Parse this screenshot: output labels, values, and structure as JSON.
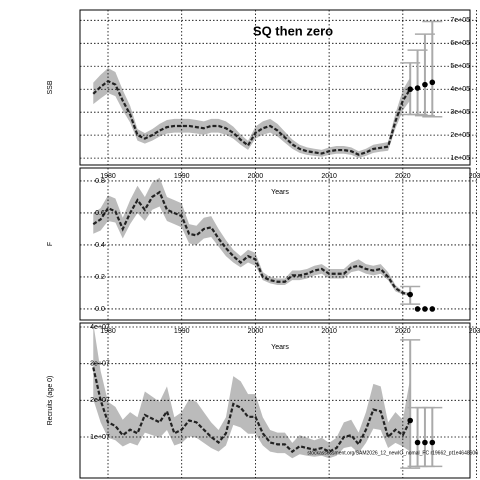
{
  "chart_data": [
    {
      "type": "line",
      "title": "SQ then zero",
      "ylabel": "SSB",
      "xlabel": "Years",
      "xlim": [
        1976.2,
        2030.2
      ],
      "xticks": [
        1980,
        1990,
        2000,
        2010,
        2020,
        2030
      ],
      "ylim": [
        70000,
        745000
      ],
      "yticks": [
        {
          "value": 100000,
          "label": "1e+05"
        },
        {
          "value": 200000,
          "label": "2e+05"
        },
        {
          "value": 300000,
          "label": "3e+05"
        },
        {
          "value": 400000,
          "label": "4e+05"
        },
        {
          "value": 500000,
          "label": "5e+05"
        },
        {
          "value": 600000,
          "label": "6e+05"
        },
        {
          "value": 700000,
          "label": "7e+05"
        }
      ],
      "ytick_side": "right",
      "grid": true,
      "color": "#222222",
      "band_color": "#bbbbbb",
      "bar_color": "#aaaaaa",
      "x": [
        1978,
        1979,
        1980,
        1981,
        1982,
        1983,
        1984,
        1985,
        1986,
        1987,
        1988,
        1989,
        1990,
        1991,
        1992,
        1993,
        1994,
        1995,
        1996,
        1997,
        1998,
        1999,
        2000,
        2001,
        2002,
        2003,
        2004,
        2005,
        2006,
        2007,
        2008,
        2009,
        2010,
        2011,
        2012,
        2013,
        2014,
        2015,
        2016,
        2017,
        2018,
        2019,
        2020,
        2021
      ],
      "values": [
        380000,
        410000,
        435000,
        420000,
        350000,
        290000,
        200000,
        185000,
        200000,
        220000,
        235000,
        240000,
        240000,
        240000,
        235000,
        230000,
        240000,
        240000,
        230000,
        210000,
        180000,
        155000,
        210000,
        230000,
        240000,
        220000,
        190000,
        160000,
        140000,
        130000,
        125000,
        120000,
        130000,
        135000,
        135000,
        130000,
        115000,
        125000,
        140000,
        145000,
        150000,
        260000,
        350000,
        400000
      ],
      "lower": [
        335000,
        360000,
        383000,
        370000,
        308000,
        255000,
        176000,
        163000,
        176000,
        194000,
        207000,
        211000,
        211000,
        211000,
        207000,
        202000,
        211000,
        211000,
        202000,
        185000,
        158000,
        136000,
        185000,
        202000,
        211000,
        194000,
        167000,
        141000,
        123000,
        114000,
        110000,
        106000,
        114000,
        119000,
        119000,
        114000,
        101000,
        110000,
        123000,
        128000,
        132000,
        229000,
        308000,
        352000
      ],
      "upper": [
        429000,
        463000,
        492000,
        475000,
        396000,
        328000,
        226000,
        209000,
        226000,
        249000,
        266000,
        271000,
        271000,
        271000,
        266000,
        260000,
        271000,
        271000,
        260000,
        237000,
        203000,
        175000,
        237000,
        260000,
        271000,
        249000,
        215000,
        181000,
        158000,
        147000,
        141000,
        136000,
        147000,
        153000,
        153000,
        147000,
        130000,
        141000,
        158000,
        164000,
        170000,
        294000,
        396000,
        452000
      ],
      "forecast": {
        "x": [
          2021,
          2022,
          2023,
          2024
        ],
        "values": [
          400000,
          405000,
          420000,
          430000
        ],
        "lower": [
          290000,
          290000,
          285000,
          280000
        ],
        "upper": [
          515000,
          570000,
          640000,
          695000
        ]
      }
    },
    {
      "type": "line",
      "ylabel": "F",
      "xlabel": "Years",
      "xlim": [
        1976.2,
        2030.2
      ],
      "xticks": [
        1980,
        1990,
        2000,
        2010,
        2020,
        2030
      ],
      "ylim": [
        -0.069,
        0.881
      ],
      "yticks": [
        {
          "value": 0,
          "label": "0.0"
        },
        0.2,
        0.4,
        0.6,
        0.8
      ],
      "ytick_side": "left",
      "grid": true,
      "color": "#222222",
      "band_color": "#bbbbbb",
      "bar_color": "#aaaaaa",
      "x": [
        1978,
        1979,
        1980,
        1981,
        1982,
        1983,
        1984,
        1985,
        1986,
        1987,
        1988,
        1989,
        1990,
        1991,
        1992,
        1993,
        1994,
        1995,
        1996,
        1997,
        1998,
        1999,
        2000,
        2001,
        2002,
        2003,
        2004,
        2005,
        2006,
        2007,
        2008,
        2009,
        2010,
        2011,
        2012,
        2013,
        2014,
        2015,
        2016,
        2017,
        2018,
        2019,
        2020,
        2021
      ],
      "values": [
        0.53,
        0.56,
        0.63,
        0.61,
        0.5,
        0.6,
        0.68,
        0.62,
        0.7,
        0.73,
        0.62,
        0.6,
        0.58,
        0.47,
        0.46,
        0.5,
        0.51,
        0.44,
        0.38,
        0.33,
        0.29,
        0.33,
        0.31,
        0.2,
        0.18,
        0.17,
        0.17,
        0.21,
        0.21,
        0.22,
        0.24,
        0.25,
        0.22,
        0.22,
        0.22,
        0.26,
        0.27,
        0.25,
        0.24,
        0.25,
        0.2,
        0.13,
        0.1,
        0.09
      ],
      "lower": [
        0.47,
        0.49,
        0.55,
        0.54,
        0.44,
        0.53,
        0.6,
        0.55,
        0.62,
        0.64,
        0.55,
        0.53,
        0.51,
        0.41,
        0.4,
        0.44,
        0.45,
        0.39,
        0.33,
        0.29,
        0.26,
        0.29,
        0.27,
        0.18,
        0.16,
        0.15,
        0.15,
        0.18,
        0.18,
        0.19,
        0.21,
        0.22,
        0.19,
        0.19,
        0.19,
        0.23,
        0.24,
        0.22,
        0.21,
        0.22,
        0.18,
        0.11,
        0.09,
        0.08
      ],
      "upper": [
        0.6,
        0.63,
        0.71,
        0.69,
        0.57,
        0.68,
        0.77,
        0.7,
        0.79,
        0.82,
        0.7,
        0.68,
        0.66,
        0.53,
        0.52,
        0.57,
        0.58,
        0.5,
        0.43,
        0.37,
        0.33,
        0.37,
        0.35,
        0.23,
        0.2,
        0.19,
        0.19,
        0.24,
        0.24,
        0.25,
        0.27,
        0.28,
        0.25,
        0.25,
        0.25,
        0.29,
        0.31,
        0.28,
        0.27,
        0.28,
        0.23,
        0.15,
        0.11,
        0.1
      ],
      "forecast": {
        "x": [
          2021,
          2022,
          2023,
          2024
        ],
        "values": [
          0.09,
          0,
          0,
          0
        ],
        "lower": [
          0.03,
          null,
          null,
          null
        ],
        "upper": [
          0.14,
          null,
          null,
          null
        ]
      }
    },
    {
      "type": "line",
      "ylabel": "Recruits (age 0)",
      "annotation": "stockassessment.org/SAM2026_12_newIO_nomal_FC r19662_pt1e4648606",
      "xlim": [
        1976.2,
        2030.2
      ],
      "xticks": [
        1980,
        1990,
        2000,
        2010,
        2020,
        2030
      ],
      "ylim": [
        -1180000,
        41090000
      ],
      "yticks": [
        {
          "value": 10000000,
          "label": "1e+07"
        },
        {
          "value": 20000000,
          "label": "2e+07"
        },
        {
          "value": 30000000,
          "label": "3e+07"
        },
        {
          "value": 40000000,
          "label": "4e+07"
        }
      ],
      "ytick_side": "left",
      "grid": true,
      "color": "#222222",
      "band_color": "#bbbbbb",
      "bar_color": "#aaaaaa",
      "x": [
        1978,
        1979,
        1980,
        1981,
        1982,
        1983,
        1984,
        1985,
        1986,
        1987,
        1988,
        1989,
        1990,
        1991,
        1992,
        1993,
        1994,
        1995,
        1996,
        1997,
        1998,
        1999,
        2000,
        2001,
        2002,
        2003,
        2004,
        2005,
        2006,
        2007,
        2008,
        2009,
        2010,
        2011,
        2012,
        2013,
        2014,
        2015,
        2016,
        2017,
        2018,
        2019,
        2020,
        2021
      ],
      "values": [
        29000000.0,
        20000000.0,
        14000000.0,
        13000000.0,
        10500000.0,
        12000000.0,
        11000000.0,
        16000000.0,
        15000000.0,
        14000000.0,
        17000000.0,
        11000000.0,
        12000000.0,
        14500000.0,
        14000000.0,
        12000000.0,
        10000000.0,
        8500000.0,
        11000000.0,
        19000000.0,
        18000000.0,
        15500000.0,
        15500000.0,
        11000000.0,
        8500000.0,
        8000000.0,
        8000000.0,
        6000000.0,
        7500000.0,
        7000000.0,
        6500000.0,
        7000000.0,
        6000000.0,
        7000000.0,
        10000000.0,
        10500000.0,
        8000000.0,
        12000000.0,
        17500000.0,
        17000000.0,
        10000000.0,
        12000000.0,
        10500000.0,
        14500000.0
      ],
      "lower": [
        20300000.0,
        14000000.0,
        9800000.0,
        9100000.0,
        7400000.0,
        8400000.0,
        7700000.0,
        11200000.0,
        10500000.0,
        9800000.0,
        11900000.0,
        7700000.0,
        8400000.0,
        10200000.0,
        9800000.0,
        8400000.0,
        7000000.0,
        6000000.0,
        7700000.0,
        13300000.0,
        12600000.0,
        10900000.0,
        10900000.0,
        7700000.0,
        6000000.0,
        5600000.0,
        5600000.0,
        4200000.0,
        5300000.0,
        4900000.0,
        4600000.0,
        4900000.0,
        4200000.0,
        4900000.0,
        7000000.0,
        7400000.0,
        5600000.0,
        8400000.0,
        12300000.0,
        11900000.0,
        7000000.0,
        8400000.0,
        7400000.0,
        6000000.0
      ],
      "upper": [
        41000000.0,
        28000000.0,
        19600000.0,
        18200000.0,
        14700000.0,
        16800000.0,
        15400000.0,
        22400000.0,
        21000000.0,
        19600000.0,
        23800000.0,
        15400000.0,
        16800000.0,
        20300000.0,
        19600000.0,
        16800000.0,
        14000000.0,
        11900000.0,
        15400000.0,
        26600000.0,
        25200000.0,
        21700000.0,
        21700000.0,
        15400000.0,
        11900000.0,
        11200000.0,
        11200000.0,
        8400000.0,
        10500000.0,
        9800000.0,
        9100000.0,
        9800000.0,
        8400000.0,
        9800000.0,
        14000000.0,
        14700000.0,
        11200000.0,
        16800000.0,
        24500000.0,
        23800000.0,
        14000000.0,
        16800000.0,
        14700000.0,
        26000000.0
      ],
      "forecast": {
        "x": [
          2021,
          2022,
          2023,
          2024
        ],
        "values": [
          14500000.0,
          8500000.0,
          8500000.0,
          8500000.0
        ],
        "lower": [
          1500000.0,
          2000000.0,
          2000000.0,
          2000000.0
        ],
        "upper": [
          36500000.0,
          18000000.0,
          18000000.0,
          18000000.0
        ]
      }
    }
  ]
}
